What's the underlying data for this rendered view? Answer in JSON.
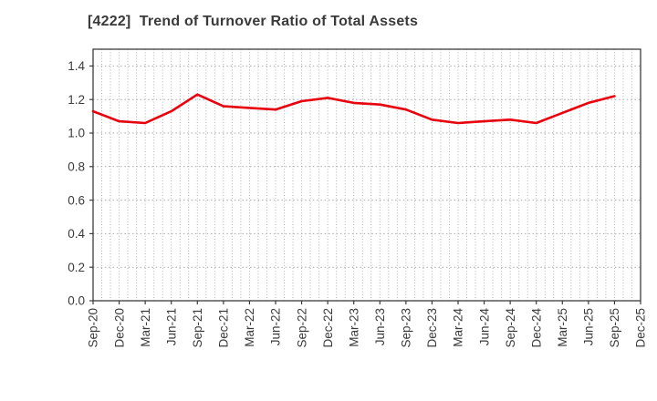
{
  "window": {
    "background": "#ffffff"
  },
  "header": {
    "title": "[4222]  Trend of Turnover Ratio of Total Assets",
    "title_color": "#3a3a3a"
  },
  "chart_data": {
    "type": "line",
    "title": "[4222]  Trend of Turnover Ratio of Total Assets",
    "categories": [
      "Sep-20",
      "Dec-20",
      "Mar-21",
      "Jun-21",
      "Sep-21",
      "Dec-21",
      "Mar-22",
      "Jun-22",
      "Sep-22",
      "Dec-22",
      "Mar-23",
      "Jun-23",
      "Sep-23",
      "Dec-23",
      "Mar-24",
      "Jun-24",
      "Sep-24",
      "Dec-24",
      "Mar-25",
      "Jun-25",
      "Sep-25",
      "Dec-25"
    ],
    "series": [
      {
        "name": "Turnover Ratio of Total Assets",
        "color": "#e8000d",
        "line_width": 2.6,
        "values": [
          1.13,
          1.07,
          1.06,
          1.13,
          1.23,
          1.16,
          1.15,
          1.14,
          1.19,
          1.21,
          1.18,
          1.17,
          1.14,
          1.08,
          1.06,
          1.07,
          1.08,
          1.06,
          1.12,
          1.18,
          1.22,
          null
        ]
      }
    ],
    "xlabel": "",
    "ylabel": "",
    "ylim": [
      0,
      1.5
    ],
    "yticks": [
      0.0,
      0.2,
      0.4,
      0.6,
      0.8,
      1.0,
      1.2,
      1.4
    ],
    "ytick_labels": [
      "0.0",
      "0.2",
      "0.4",
      "0.6",
      "0.8",
      "1.0",
      "1.2",
      "1.4"
    ],
    "legend": "none",
    "grid": {
      "horizontal": true,
      "vertical": true,
      "vertical_minor_per_interval": 3,
      "h_color": "#a8a8a8",
      "v_color": "#b0b0b0"
    },
    "axis": {
      "border_color": "#3c3c3c",
      "tick_color": "#3c3c3c",
      "tick_label_color": "#3a3a3a"
    }
  }
}
